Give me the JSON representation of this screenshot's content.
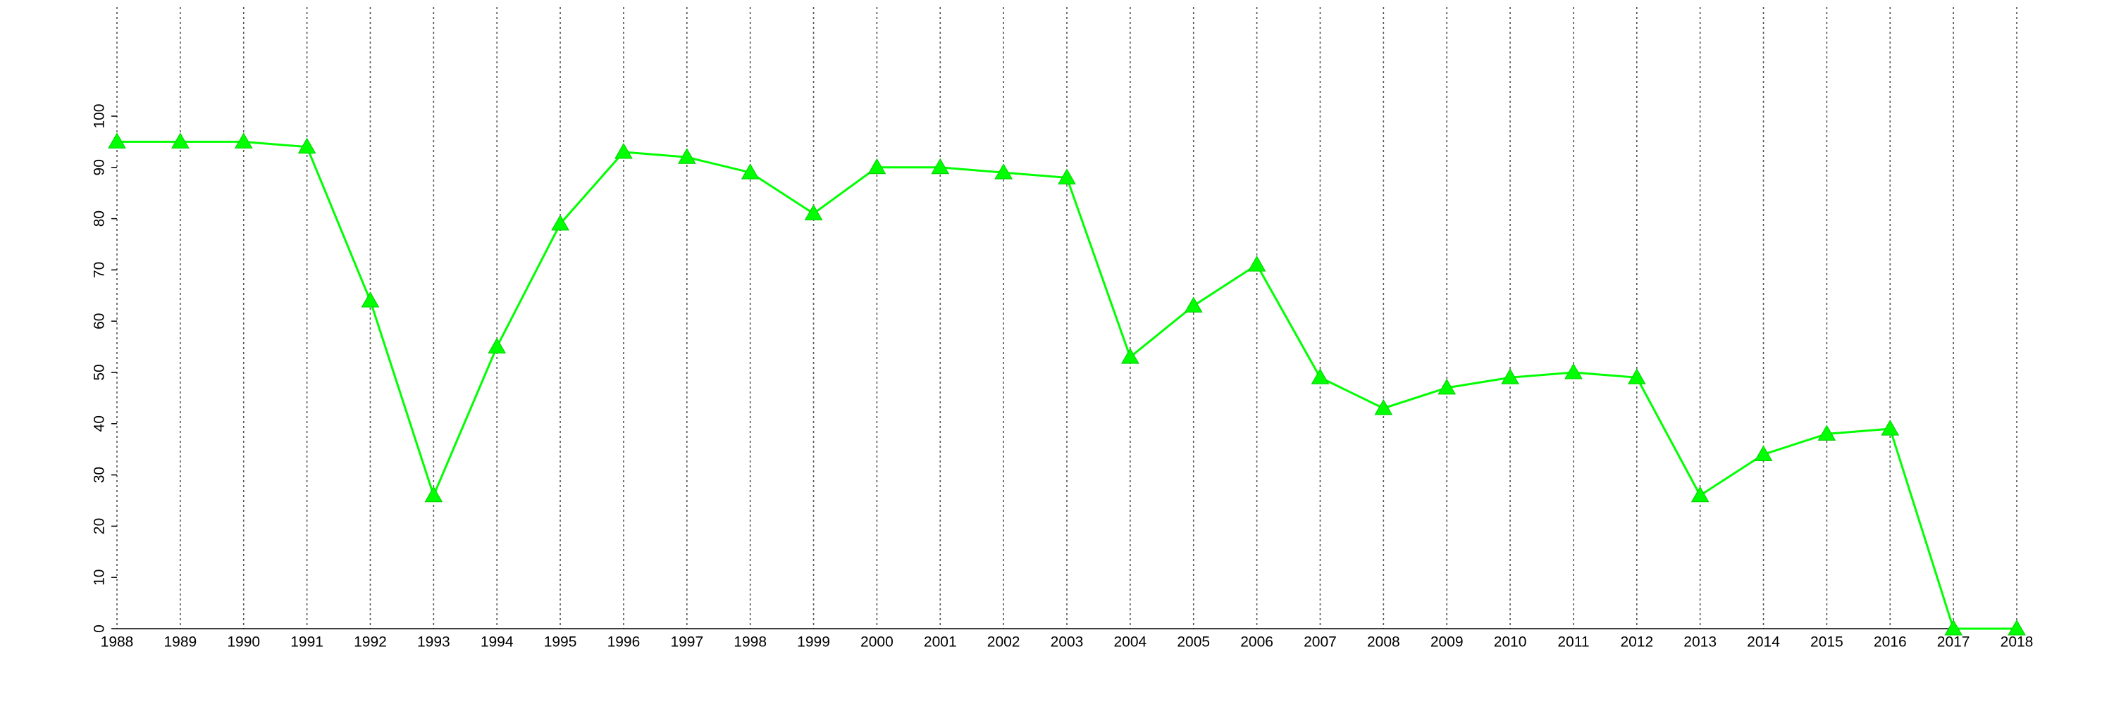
{
  "chart_data": {
    "type": "line",
    "x": [
      1988,
      1989,
      1990,
      1991,
      1992,
      1993,
      1994,
      1995,
      1996,
      1997,
      1998,
      1999,
      2000,
      2001,
      2002,
      2003,
      2004,
      2005,
      2006,
      2007,
      2008,
      2009,
      2010,
      2011,
      2012,
      2013,
      2014,
      2015,
      2016,
      2017,
      2018
    ],
    "series": [
      {
        "color": "#00ff00",
        "marker": "triangle",
        "values": [
          95,
          95,
          95,
          94,
          64,
          26,
          55,
          79,
          93,
          92,
          89,
          81,
          90,
          90,
          89,
          88,
          53,
          63,
          71,
          49,
          43,
          47,
          49,
          50,
          49,
          26,
          34,
          38,
          39,
          0,
          0
        ]
      }
    ],
    "xlim": [
      1988,
      2018
    ],
    "xticks": [
      1988,
      1989,
      1990,
      1991,
      1992,
      1993,
      1994,
      1995,
      1996,
      1997,
      1998,
      1999,
      2000,
      2001,
      2002,
      2003,
      2004,
      2005,
      2006,
      2007,
      2008,
      2009,
      2010,
      2011,
      2012,
      2013,
      2014,
      2015,
      2016,
      2017,
      2018
    ],
    "ylim": [
      0,
      100
    ],
    "yticks": [
      0,
      10,
      20,
      30,
      40,
      50,
      60,
      70,
      80,
      90,
      100
    ],
    "xgrid": true
  }
}
